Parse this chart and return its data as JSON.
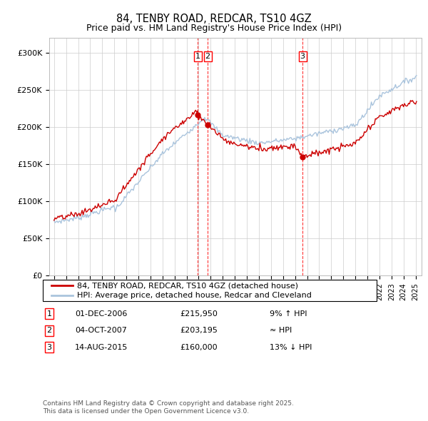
{
  "title": "84, TENBY ROAD, REDCAR, TS10 4GZ",
  "subtitle": "Price paid vs. HM Land Registry's House Price Index (HPI)",
  "y_ticks": [
    0,
    50000,
    100000,
    150000,
    200000,
    250000,
    300000
  ],
  "y_tick_labels": [
    "£0",
    "£50K",
    "£100K",
    "£150K",
    "£200K",
    "£250K",
    "£300K"
  ],
  "hpi_color": "#aac4dd",
  "price_color": "#cc0000",
  "marker_color": "#cc0000",
  "t_years": [
    2006.92,
    2007.75,
    2015.62
  ],
  "t_prices": [
    215950,
    203195,
    160000
  ],
  "legend_line1": "84, TENBY ROAD, REDCAR, TS10 4GZ (detached house)",
  "legend_line2": "HPI: Average price, detached house, Redcar and Cleveland",
  "trans_nums": [
    "1",
    "2",
    "3"
  ],
  "trans_dates": [
    "01-DEC-2006",
    "04-OCT-2007",
    "14-AUG-2015"
  ],
  "trans_prices": [
    "£215,950",
    "£203,195",
    "£160,000"
  ],
  "trans_pcts": [
    "9% ↑ HPI",
    "≈ HPI",
    "13% ↓ HPI"
  ],
  "footnote": "Contains HM Land Registry data © Crown copyright and database right 2025.\nThis data is licensed under the Open Government Licence v3.0."
}
